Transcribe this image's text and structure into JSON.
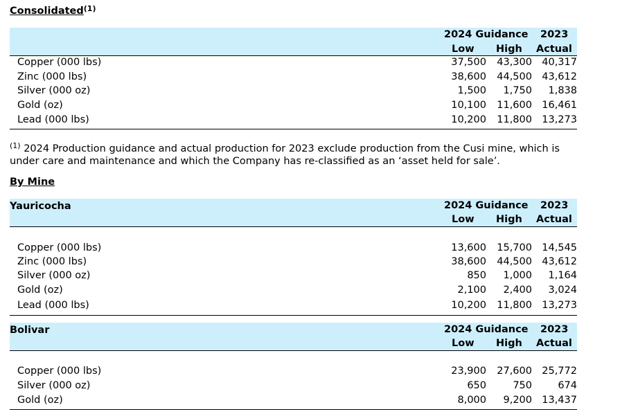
{
  "consolidated": {
    "title": "Consolidated",
    "title_sup": "(1)",
    "hdr_guidance": "2024 Guidance",
    "hdr_year": "2023",
    "hdr_low": "Low",
    "hdr_high": "High",
    "hdr_actual": "Actual",
    "rows": [
      {
        "label": "Copper (000 lbs)",
        "low": "37,500",
        "high": "43,300",
        "actual": "40,317"
      },
      {
        "label": "Zinc (000 lbs)",
        "low": "38,600",
        "high": "44,500",
        "actual": "43,612"
      },
      {
        "label": "Silver (000 oz)",
        "low": "1,500",
        "high": "1,750",
        "actual": "1,838"
      },
      {
        "label": "Gold (oz)",
        "low": "10,100",
        "high": "11,600",
        "actual": "16,461"
      },
      {
        "label": "Lead (000 lbs)",
        "low": "10,200",
        "high": "11,800",
        "actual": "13,273"
      }
    ]
  },
  "footnote": {
    "marker": "(1)",
    "text": " 2024 Production guidance and actual production for 2023 exclude production from the Cusi mine, which is under care and maintenance and which the Company has re-classified as an ‘asset held for sale’."
  },
  "by_mine_title": "By Mine",
  "yauricocha": {
    "name": "Yauricocha",
    "hdr_guidance": "2024 Guidance",
    "hdr_year": "2023",
    "hdr_low": "Low",
    "hdr_high": "High",
    "hdr_actual": "Actual",
    "rows": [
      {
        "label": "Copper (000 lbs)",
        "low": "13,600",
        "high": "15,700",
        "actual": "14,545"
      },
      {
        "label": "Zinc (000 lbs)",
        "low": "38,600",
        "high": "44,500",
        "actual": "43,612"
      },
      {
        "label": "Silver (000 oz)",
        "low": "850",
        "high": "1,000",
        "actual": "1,164"
      },
      {
        "label": "Gold (oz)",
        "low": "2,100",
        "high": "2,400",
        "actual": "3,024"
      },
      {
        "label": "Lead (000 lbs)",
        "low": "10,200",
        "high": "11,800",
        "actual": "13,273"
      }
    ]
  },
  "bolivar": {
    "name": "Bolivar",
    "hdr_guidance": "2024 Guidance",
    "hdr_year": "2023",
    "hdr_low": "Low",
    "hdr_high": "High",
    "hdr_actual": "Actual",
    "rows": [
      {
        "label": "Copper (000 lbs)",
        "low": "23,900",
        "high": "27,600",
        "actual": "25,772"
      },
      {
        "label": "Silver (000 oz)",
        "low": "650",
        "high": "750",
        "actual": "674"
      },
      {
        "label": "Gold (oz)",
        "low": "8,000",
        "high": "9,200",
        "actual": "13,437"
      }
    ]
  }
}
